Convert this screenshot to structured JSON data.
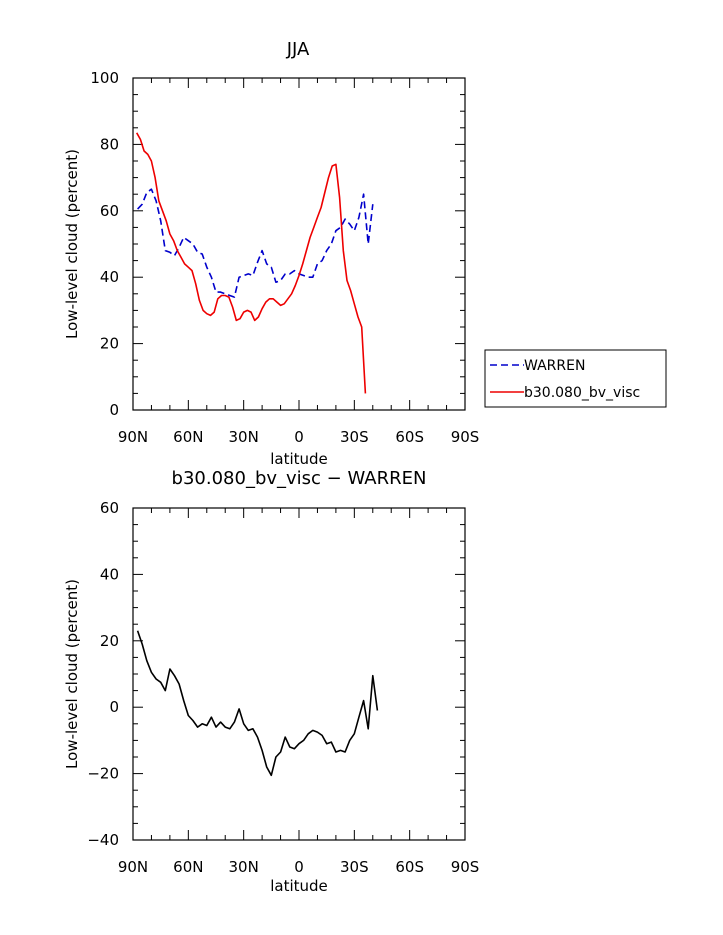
{
  "chart_data": [
    {
      "type": "line",
      "title": "JJA",
      "xlabel": "latitude",
      "ylabel": "Low-level cloud (percent)",
      "xlim": [
        90,
        -90
      ],
      "ylim": [
        0,
        100
      ],
      "x_ticks": [
        90,
        60,
        30,
        0,
        -30,
        -60,
        -90
      ],
      "x_tick_labels": [
        "90N",
        "60N",
        "30N",
        "0",
        "30S",
        "60S",
        "90S"
      ],
      "y_ticks": [
        0,
        20,
        40,
        60,
        80,
        100
      ],
      "y_tick_labels": [
        "0",
        "20",
        "40",
        "60",
        "80",
        "100"
      ],
      "legend_position": "right",
      "series": [
        {
          "name": "WARREN",
          "color": "#0000cc",
          "style": "dashed",
          "points": [
            [
              87.5,
              60.5
            ],
            [
              85,
              62
            ],
            [
              82.5,
              65.5
            ],
            [
              80,
              66.5
            ],
            [
              77.5,
              63
            ],
            [
              75,
              57
            ],
            [
              72.5,
              48
            ],
            [
              70,
              47.5
            ],
            [
              67.5,
              46.5
            ],
            [
              65,
              49
            ],
            [
              62.5,
              52
            ],
            [
              60,
              51
            ],
            [
              57.5,
              50
            ],
            [
              55,
              47.5
            ],
            [
              52.5,
              47
            ],
            [
              50,
              43
            ],
            [
              47.5,
              40
            ],
            [
              45,
              35.5
            ],
            [
              42.5,
              35.5
            ],
            [
              40,
              35
            ],
            [
              37.5,
              34.5
            ],
            [
              35,
              34
            ],
            [
              32.5,
              40
            ],
            [
              30,
              40.5
            ],
            [
              27.5,
              41
            ],
            [
              25,
              40.5
            ],
            [
              22.5,
              44.5
            ],
            [
              20,
              48
            ],
            [
              17.5,
              44
            ],
            [
              15,
              43
            ],
            [
              12.5,
              38.5
            ],
            [
              10,
              39
            ],
            [
              7.5,
              41
            ],
            [
              5,
              41
            ],
            [
              2.5,
              42
            ],
            [
              0,
              41
            ],
            [
              -2.5,
              40.5
            ],
            [
              -5,
              40
            ],
            [
              -7.5,
              40
            ],
            [
              -10,
              44
            ],
            [
              -12.5,
              45
            ],
            [
              -15,
              48
            ],
            [
              -17.5,
              50
            ],
            [
              -20,
              54
            ],
            [
              -22.5,
              55
            ],
            [
              -25,
              57.5
            ],
            [
              -27.5,
              56
            ],
            [
              -30,
              54
            ],
            [
              -32.5,
              58
            ],
            [
              -35,
              65
            ],
            [
              -37.5,
              50
            ],
            [
              -40,
              62
            ]
          ]
        },
        {
          "name": "b30.080_bv_visc",
          "color": "#ee0000",
          "style": "solid",
          "points": [
            [
              88,
              83.5
            ],
            [
              86,
              81.5
            ],
            [
              84,
              78
            ],
            [
              82,
              77
            ],
            [
              80,
              75
            ],
            [
              78,
              70
            ],
            [
              76,
              63
            ],
            [
              74,
              60
            ],
            [
              72,
              57
            ],
            [
              70,
              53
            ],
            [
              68,
              51
            ],
            [
              66,
              48
            ],
            [
              64,
              46
            ],
            [
              62,
              44
            ],
            [
              60,
              43
            ],
            [
              58,
              42
            ],
            [
              56,
              38
            ],
            [
              54,
              33
            ],
            [
              52,
              30
            ],
            [
              50,
              29
            ],
            [
              48,
              28.5
            ],
            [
              46,
              29.5
            ],
            [
              44,
              33.5
            ],
            [
              42,
              34.5
            ],
            [
              40,
              34.5
            ],
            [
              38,
              34
            ],
            [
              36,
              31
            ],
            [
              34,
              27
            ],
            [
              32,
              27.5
            ],
            [
              30,
              29.5
            ],
            [
              28,
              30
            ],
            [
              26,
              29.5
            ],
            [
              24,
              27
            ],
            [
              22,
              28
            ],
            [
              20,
              30.5
            ],
            [
              18,
              32.5
            ],
            [
              16,
              33.5
            ],
            [
              14,
              33.5
            ],
            [
              12,
              32.5
            ],
            [
              10,
              31.5
            ],
            [
              8,
              32
            ],
            [
              6,
              33.5
            ],
            [
              4,
              35
            ],
            [
              2,
              37.5
            ],
            [
              0,
              40.5
            ],
            [
              -2,
              44
            ],
            [
              -4,
              48
            ],
            [
              -6,
              52
            ],
            [
              -8,
              55
            ],
            [
              -10,
              58
            ],
            [
              -12,
              61
            ],
            [
              -14,
              65.5
            ],
            [
              -16,
              70
            ],
            [
              -18,
              73.5
            ],
            [
              -20,
              74
            ],
            [
              -22,
              64
            ],
            [
              -24,
              48
            ],
            [
              -26,
              39
            ],
            [
              -28,
              36
            ],
            [
              -30,
              32
            ],
            [
              -32,
              28
            ],
            [
              -34,
              25
            ],
            [
              -36,
              5
            ]
          ]
        }
      ]
    },
    {
      "type": "line",
      "title": "b30.080_bv_visc − WARREN",
      "xlabel": "latitude",
      "ylabel": "Low-level cloud (percent)",
      "xlim": [
        90,
        -90
      ],
      "ylim": [
        -40,
        60
      ],
      "x_ticks": [
        90,
        60,
        30,
        0,
        -30,
        -60,
        -90
      ],
      "x_tick_labels": [
        "90N",
        "60N",
        "30N",
        "0",
        "30S",
        "60S",
        "90S"
      ],
      "y_ticks": [
        -40,
        -20,
        0,
        20,
        40,
        60
      ],
      "y_tick_labels": [
        "−40",
        "−20",
        "0",
        "20",
        "40",
        "60"
      ],
      "series": [
        {
          "color": "#000000",
          "style": "solid",
          "points": [
            [
              87.5,
              23
            ],
            [
              85,
              19
            ],
            [
              82.5,
              14
            ],
            [
              80,
              10.5
            ],
            [
              77.5,
              8.5
            ],
            [
              75,
              7.5
            ],
            [
              72.5,
              5
            ],
            [
              70,
              11.5
            ],
            [
              67.5,
              9.5
            ],
            [
              65,
              7
            ],
            [
              62.5,
              2
            ],
            [
              60,
              -2.5
            ],
            [
              57.5,
              -4
            ],
            [
              55,
              -6
            ],
            [
              52.5,
              -5
            ],
            [
              50,
              -5.5
            ],
            [
              47.5,
              -3
            ],
            [
              45,
              -6
            ],
            [
              42.5,
              -4.5
            ],
            [
              40,
              -6
            ],
            [
              37.5,
              -6.5
            ],
            [
              35,
              -4.5
            ],
            [
              32.5,
              -0.5
            ],
            [
              30,
              -5
            ],
            [
              27.5,
              -7
            ],
            [
              25,
              -6.5
            ],
            [
              22.5,
              -9
            ],
            [
              20,
              -13
            ],
            [
              17.5,
              -18
            ],
            [
              15,
              -20.5
            ],
            [
              12.5,
              -15
            ],
            [
              10,
              -13.5
            ],
            [
              7.5,
              -9
            ],
            [
              5,
              -12
            ],
            [
              2.5,
              -12.5
            ],
            [
              0,
              -11
            ],
            [
              -2.5,
              -10
            ],
            [
              -5,
              -8
            ],
            [
              -7.5,
              -7
            ],
            [
              -10,
              -7.5
            ],
            [
              -12.5,
              -8.5
            ],
            [
              -15,
              -11
            ],
            [
              -17.5,
              -10.5
            ],
            [
              -20,
              -13.5
            ],
            [
              -22.5,
              -13
            ],
            [
              -25,
              -13.5
            ],
            [
              -27.5,
              -10
            ],
            [
              -30,
              -8
            ],
            [
              -32.5,
              -3
            ],
            [
              -35,
              2
            ],
            [
              -37.5,
              -6.5
            ],
            [
              -40,
              9.5
            ],
            [
              -42.5,
              -1
            ]
          ]
        }
      ]
    }
  ]
}
